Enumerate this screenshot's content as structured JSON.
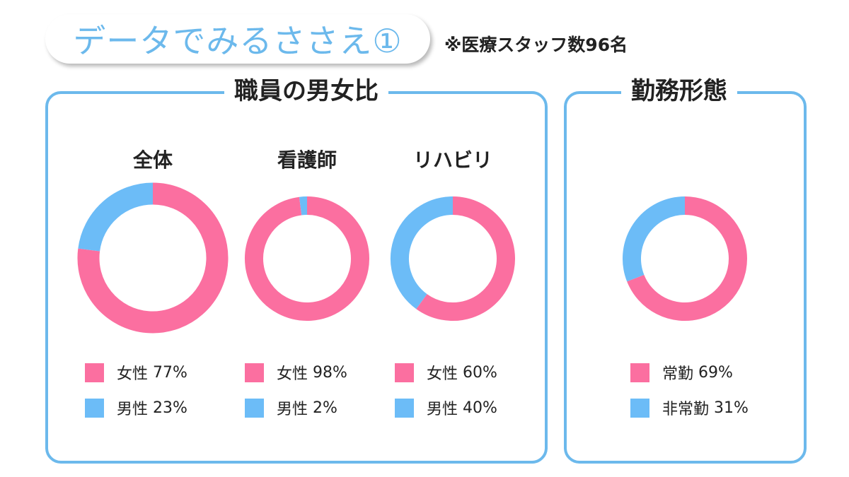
{
  "header": {
    "title": "データでみるささえ①",
    "note": "※医療スタッフ数96名"
  },
  "colors": {
    "female": "#fb6fa0",
    "male": "#6cbcf7",
    "accent": "#6cb9ec"
  },
  "panels": {
    "gender_title": "職員の男女比",
    "employment_title": "勤務形態"
  },
  "chart_data": [
    {
      "type": "pie",
      "title": "全体",
      "categories": [
        "女性",
        "男性"
      ],
      "values": [
        77,
        23
      ],
      "value_labels": [
        "77%",
        "23%"
      ]
    },
    {
      "type": "pie",
      "title": "看護師",
      "categories": [
        "女性",
        "男性"
      ],
      "values": [
        98,
        2
      ],
      "value_labels": [
        "98%",
        "2%"
      ]
    },
    {
      "type": "pie",
      "title": "リハビリ",
      "categories": [
        "女性",
        "男性"
      ],
      "values": [
        60,
        40
      ],
      "value_labels": [
        "60%",
        "40%"
      ]
    },
    {
      "type": "pie",
      "title": "",
      "categories": [
        "常勤",
        "非常勤"
      ],
      "values": [
        69,
        31
      ],
      "value_labels": [
        "69%",
        "31%"
      ]
    }
  ]
}
